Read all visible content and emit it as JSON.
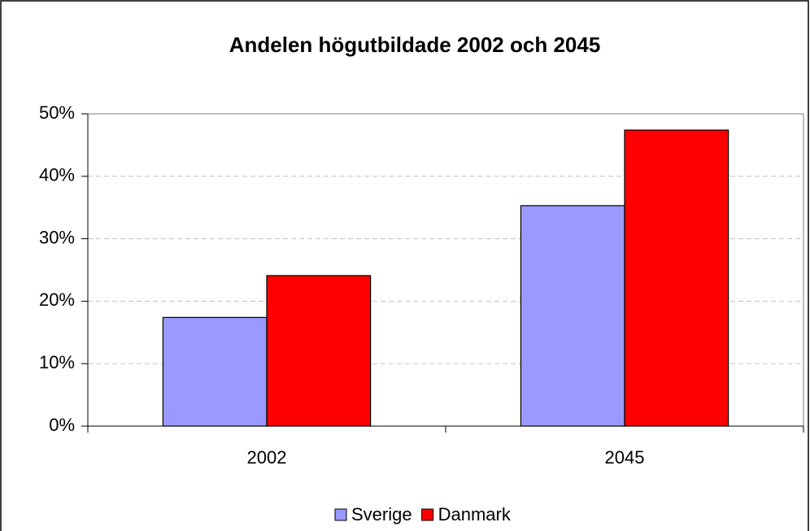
{
  "chart_data": {
    "type": "bar",
    "title": "Andelen högutbildade 2002 och 2045",
    "categories": [
      "2002",
      "2045"
    ],
    "series": [
      {
        "name": "Sverige",
        "color": "#9999ff",
        "values": [
          17.4,
          35.3
        ]
      },
      {
        "name": "Danmark",
        "color": "#ff0000",
        "values": [
          24.1,
          47.4
        ]
      }
    ],
    "ylim": [
      0,
      50
    ],
    "yticks": [
      {
        "value": 0,
        "label": "0%"
      },
      {
        "value": 10,
        "label": "10%"
      },
      {
        "value": 20,
        "label": "20%"
      },
      {
        "value": 30,
        "label": "30%"
      },
      {
        "value": 40,
        "label": "40%"
      },
      {
        "value": 50,
        "label": "50%"
      }
    ],
    "grid": true,
    "legend": "bottom"
  }
}
